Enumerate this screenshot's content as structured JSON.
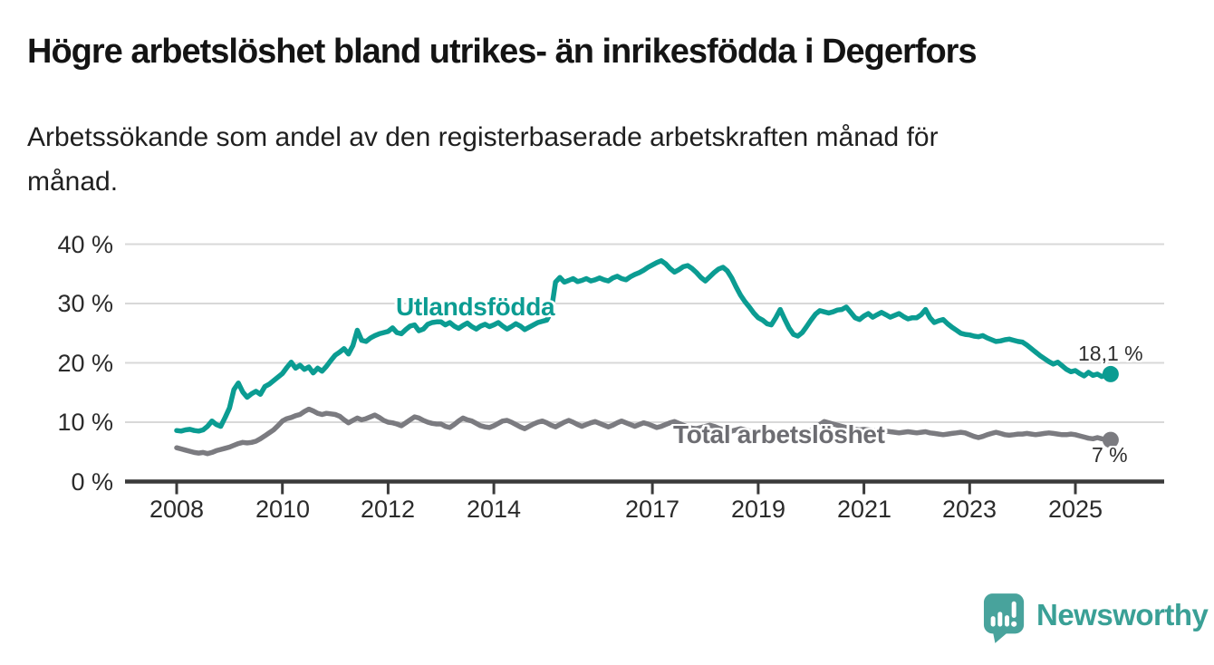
{
  "header": {
    "title": "Högre arbetslöshet bland utrikes- än inrikesfödda i Degerfors",
    "subtitle": "Arbetssökande som andel av den registerbaserade arbetskraften månad för månad.",
    "subtitle_line1": "Arbetssökande som andel av den registerbaserade arbetskraften månad för",
    "subtitle_line2": "månad."
  },
  "chart_data": {
    "type": "line",
    "unit": "%",
    "frequency": "monthly",
    "start": "2008-01",
    "end": "2025-09",
    "ylim": [
      0,
      42
    ],
    "grid": "horizontal",
    "legend_position": "inline-labels",
    "y_ticks": [
      {
        "value": 40,
        "label": "40 %"
      },
      {
        "value": 30,
        "label": "30 %"
      },
      {
        "value": 20,
        "label": "20 %"
      },
      {
        "value": 10,
        "label": "10 %"
      },
      {
        "value": 0,
        "label": "0 %"
      }
    ],
    "x_ticks": [
      {
        "year": 2008,
        "label": "2008"
      },
      {
        "year": 2010,
        "label": "2010"
      },
      {
        "year": 2012,
        "label": "2012"
      },
      {
        "year": 2014,
        "label": "2014"
      },
      {
        "year": 2017,
        "label": "2017"
      },
      {
        "year": 2019,
        "label": "2019"
      },
      {
        "year": 2021,
        "label": "2021"
      },
      {
        "year": 2023,
        "label": "2023"
      },
      {
        "year": 2025,
        "label": "2025"
      }
    ],
    "series": [
      {
        "name": "Utlandsfödda",
        "color": "#0b9c92",
        "label_color": "#0b9c92",
        "end_label": "18,1 %",
        "end_value": 18.1,
        "values": [
          8.6,
          8.5,
          8.7,
          8.8,
          8.6,
          8.5,
          8.7,
          9.3,
          10.2,
          9.6,
          9.3,
          10.8,
          12.4,
          15.5,
          16.6,
          15.1,
          14.2,
          14.8,
          15.2,
          14.7,
          16.0,
          16.4,
          17.0,
          17.6,
          18.2,
          19.2,
          20.1,
          19.1,
          19.6,
          18.9,
          19.3,
          18.3,
          19.1,
          18.6,
          19.4,
          20.4,
          21.3,
          21.8,
          22.4,
          21.5,
          22.9,
          25.5,
          23.8,
          23.6,
          24.2,
          24.6,
          24.9,
          25.1,
          25.3,
          25.9,
          25.1,
          24.9,
          25.6,
          26.2,
          26.4,
          25.4,
          25.7,
          26.5,
          26.8,
          26.9,
          26.9,
          26.4,
          26.8,
          26.2,
          25.8,
          26.3,
          26.7,
          26.1,
          25.7,
          26.2,
          26.5,
          26.1,
          26.4,
          26.8,
          26.2,
          25.7,
          26.1,
          26.6,
          26.2,
          25.6,
          26.0,
          26.4,
          26.8,
          27.0,
          27.2,
          28.6,
          33.6,
          34.4,
          33.6,
          33.9,
          34.2,
          33.7,
          33.9,
          34.2,
          33.8,
          34.0,
          34.3,
          34.0,
          33.8,
          34.3,
          34.6,
          34.2,
          34.0,
          34.5,
          34.9,
          35.2,
          35.6,
          36.1,
          36.5,
          36.9,
          37.2,
          36.7,
          35.9,
          35.3,
          35.7,
          36.2,
          36.4,
          35.9,
          35.2,
          34.4,
          33.8,
          34.5,
          35.2,
          35.8,
          36.1,
          35.5,
          34.3,
          32.8,
          31.4,
          30.3,
          29.4,
          28.4,
          27.6,
          27.2,
          26.6,
          26.4,
          27.6,
          29.0,
          27.4,
          25.9,
          24.8,
          24.5,
          25.1,
          26.1,
          27.2,
          28.2,
          28.8,
          28.6,
          28.4,
          28.6,
          28.9,
          29.0,
          29.4,
          28.5,
          27.6,
          27.3,
          27.9,
          28.3,
          27.7,
          28.1,
          28.5,
          28.1,
          27.7,
          28.0,
          28.3,
          27.8,
          27.4,
          27.6,
          27.6,
          28.1,
          29.0,
          27.6,
          26.8,
          27.1,
          27.3,
          26.6,
          26.0,
          25.5,
          25.0,
          24.8,
          24.7,
          24.5,
          24.4,
          24.6,
          24.2,
          23.9,
          23.6,
          23.7,
          23.9,
          24.0,
          23.8,
          23.6,
          23.5,
          23.0,
          22.4,
          21.8,
          21.2,
          20.7,
          20.2,
          19.8,
          20.1,
          19.5,
          18.9,
          18.5,
          18.7,
          18.2,
          17.8,
          18.4,
          17.9,
          18.1,
          17.7,
          18.0,
          18.1
        ]
      },
      {
        "name": "Total arbetslöshet",
        "color": "#7b7b80",
        "label_color": "#6d6d72",
        "end_label": "7 %",
        "end_value": 7.0,
        "values": [
          5.7,
          5.5,
          5.3,
          5.1,
          4.9,
          4.8,
          4.9,
          4.7,
          4.9,
          5.2,
          5.4,
          5.6,
          5.8,
          6.1,
          6.4,
          6.6,
          6.5,
          6.6,
          6.8,
          7.2,
          7.7,
          8.2,
          8.7,
          9.4,
          10.2,
          10.6,
          10.8,
          11.1,
          11.3,
          11.8,
          12.2,
          11.9,
          11.5,
          11.3,
          11.5,
          11.4,
          11.3,
          11.0,
          10.4,
          9.9,
          10.3,
          10.7,
          10.4,
          10.6,
          10.9,
          11.2,
          10.8,
          10.3,
          10.0,
          9.9,
          9.7,
          9.4,
          9.9,
          10.4,
          10.9,
          10.7,
          10.3,
          10.0,
          9.8,
          9.7,
          9.7,
          9.3,
          9.1,
          9.6,
          10.2,
          10.7,
          10.4,
          10.2,
          9.8,
          9.4,
          9.2,
          9.1,
          9.4,
          9.8,
          10.2,
          10.3,
          10.0,
          9.6,
          9.2,
          8.9,
          9.3,
          9.7,
          10.0,
          10.2,
          9.9,
          9.5,
          9.2,
          9.6,
          10.0,
          10.3,
          10.0,
          9.6,
          9.3,
          9.6,
          9.9,
          10.1,
          9.8,
          9.5,
          9.2,
          9.5,
          9.9,
          10.2,
          9.9,
          9.6,
          9.3,
          9.6,
          9.9,
          9.7,
          9.4,
          9.1,
          9.3,
          9.6,
          9.9,
          10.1,
          9.8,
          9.5,
          9.2,
          9.0,
          8.9,
          9.1,
          9.3,
          9.5,
          9.3,
          9.0,
          8.8,
          8.6,
          8.5,
          8.7,
          8.9,
          8.7,
          8.5,
          8.4,
          8.3,
          8.5,
          8.7,
          8.5,
          8.3,
          8.2,
          8.1,
          8.3,
          8.5,
          8.4,
          8.2,
          8.3,
          8.6,
          8.9,
          9.6,
          10.1,
          9.9,
          9.7,
          9.5,
          9.3,
          9.1,
          8.9,
          8.8,
          8.7,
          8.8,
          8.7,
          8.6,
          8.5,
          8.4,
          8.5,
          8.4,
          8.3,
          8.2,
          8.3,
          8.4,
          8.3,
          8.2,
          8.3,
          8.4,
          8.2,
          8.1,
          8.0,
          7.9,
          8.0,
          8.1,
          8.2,
          8.3,
          8.2,
          7.9,
          7.6,
          7.4,
          7.6,
          7.9,
          8.1,
          8.3,
          8.1,
          7.9,
          7.8,
          7.9,
          8.0,
          8.0,
          8.1,
          8.0,
          7.9,
          8.0,
          8.1,
          8.2,
          8.1,
          8.0,
          7.9,
          7.9,
          8.0,
          7.9,
          7.7,
          7.5,
          7.3,
          7.2,
          7.4,
          7.2,
          7.1,
          7.0
        ]
      }
    ]
  },
  "footer": {
    "brand": "Newsworthy",
    "logo_icon": "speech-bubble-bar-chart-icon"
  },
  "colors": {
    "accent_teal": "#0b9c92",
    "series_gray": "#7b7b80",
    "grid": "#d8d8d8",
    "axis": "#3a3a3a",
    "tick_text": "#2b2b2b",
    "title_text": "#141414",
    "logo_icon_teal": "#48a39c",
    "logo_text_teal": "#3aa096"
  }
}
